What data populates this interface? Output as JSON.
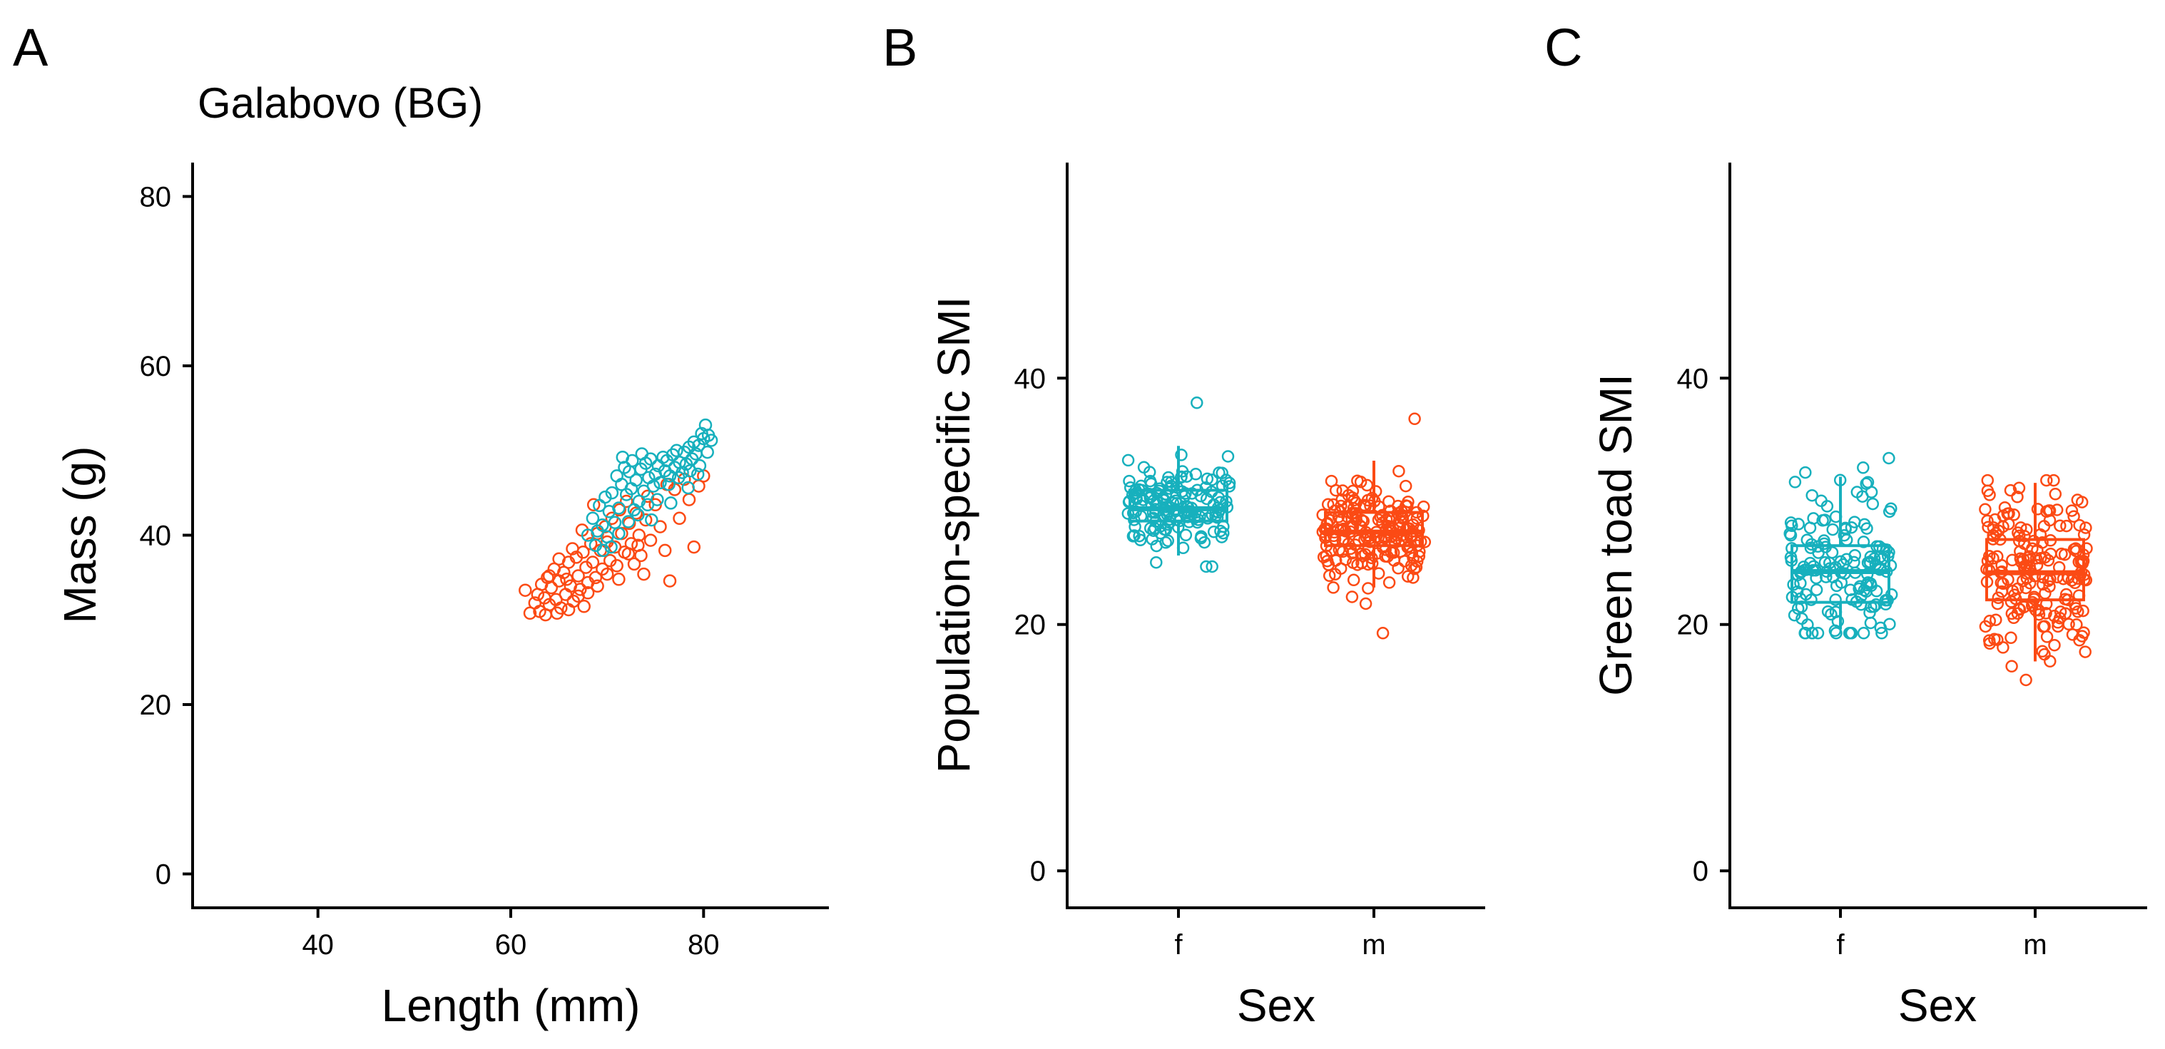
{
  "colors": {
    "f": "#17b0bd",
    "m": "#fb4a14"
  },
  "panel_labels": [
    "A",
    "B",
    "C"
  ],
  "chart_data": [
    {
      "type": "scatter",
      "panel": "A",
      "title": "Galabovo (BG)",
      "xlabel": "Length (mm)",
      "ylabel": "Mass (g)",
      "xlim": [
        27,
        93
      ],
      "ylim": [
        -4,
        84
      ],
      "xticks": [
        40,
        60,
        80
      ],
      "yticks": [
        0,
        20,
        40,
        60,
        80
      ],
      "series": [
        {
          "name": "f",
          "points": [
            [
              68.0,
              40.0
            ],
            [
              68.5,
              42.0
            ],
            [
              69.0,
              40.5
            ],
            [
              69.2,
              43.5
            ],
            [
              69.5,
              41.2
            ],
            [
              69.8,
              44.5
            ],
            [
              70.0,
              39.8
            ],
            [
              70.2,
              42.8
            ],
            [
              70.5,
              45.0
            ],
            [
              70.8,
              41.5
            ],
            [
              71.0,
              47.0
            ],
            [
              71.2,
              43.2
            ],
            [
              71.5,
              46.0
            ],
            [
              71.8,
              48.0
            ],
            [
              72.0,
              44.8
            ],
            [
              72.3,
              47.5
            ],
            [
              72.5,
              45.5
            ],
            [
              72.8,
              43.0
            ],
            [
              73.0,
              46.5
            ],
            [
              73.3,
              44.0
            ],
            [
              73.5,
              47.8
            ],
            [
              73.8,
              45.2
            ],
            [
              74.0,
              48.5
            ],
            [
              74.3,
              46.8
            ],
            [
              74.5,
              49.0
            ],
            [
              74.8,
              45.8
            ],
            [
              75.0,
              47.2
            ],
            [
              75.3,
              48.2
            ],
            [
              75.5,
              46.2
            ],
            [
              75.8,
              49.2
            ],
            [
              76.0,
              47.6
            ],
            [
              76.2,
              48.8
            ],
            [
              76.5,
              47.0
            ],
            [
              76.8,
              49.5
            ],
            [
              77.0,
              48.0
            ],
            [
              77.2,
              50.0
            ],
            [
              77.5,
              48.6
            ],
            [
              77.8,
              47.4
            ],
            [
              78.0,
              49.8
            ],
            [
              78.2,
              48.4
            ],
            [
              78.5,
              50.4
            ],
            [
              78.8,
              49.0
            ],
            [
              79.0,
              51.0
            ],
            [
              79.2,
              49.6
            ],
            [
              79.5,
              50.6
            ],
            [
              79.8,
              52.0
            ],
            [
              80.0,
              51.4
            ],
            [
              80.2,
              53.0
            ],
            [
              80.5,
              51.8
            ],
            [
              80.8,
              51.2
            ],
            [
              79.6,
              48.2
            ],
            [
              78.6,
              47.6
            ],
            [
              77.4,
              46.8
            ],
            [
              76.4,
              46.0
            ],
            [
              75.2,
              44.2
            ],
            [
              74.2,
              43.6
            ],
            [
              73.2,
              42.4
            ],
            [
              72.2,
              41.6
            ],
            [
              71.2,
              40.2
            ],
            [
              70.4,
              38.6
            ],
            [
              69.6,
              38.2
            ],
            [
              68.8,
              38.8
            ],
            [
              73.6,
              49.6
            ],
            [
              72.6,
              48.8
            ],
            [
              71.6,
              49.2
            ],
            [
              74.6,
              41.8
            ],
            [
              76.6,
              43.8
            ],
            [
              78.4,
              45.6
            ],
            [
              79.4,
              47.2
            ],
            [
              80.4,
              49.8
            ]
          ]
        },
        {
          "name": "m",
          "points": [
            [
              61.5,
              33.5
            ],
            [
              62.0,
              30.8
            ],
            [
              62.5,
              32.0
            ],
            [
              63.0,
              31.0
            ],
            [
              63.2,
              34.2
            ],
            [
              63.5,
              32.6
            ],
            [
              63.8,
              35.0
            ],
            [
              64.0,
              31.8
            ],
            [
              64.2,
              33.8
            ],
            [
              64.5,
              36.0
            ],
            [
              64.7,
              32.4
            ],
            [
              65.0,
              34.6
            ],
            [
              65.2,
              31.4
            ],
            [
              65.5,
              35.6
            ],
            [
              65.7,
              33.0
            ],
            [
              66.0,
              36.8
            ],
            [
              66.2,
              34.0
            ],
            [
              66.5,
              32.2
            ],
            [
              66.8,
              37.4
            ],
            [
              67.0,
              35.2
            ],
            [
              67.2,
              33.6
            ],
            [
              67.5,
              38.0
            ],
            [
              67.8,
              36.2
            ],
            [
              68.0,
              34.4
            ],
            [
              68.3,
              39.0
            ],
            [
              68.5,
              36.8
            ],
            [
              68.8,
              35.0
            ],
            [
              69.0,
              40.2
            ],
            [
              69.3,
              38.2
            ],
            [
              69.5,
              36.0
            ],
            [
              69.8,
              41.0
            ],
            [
              70.0,
              39.2
            ],
            [
              70.3,
              37.0
            ],
            [
              70.5,
              42.0
            ],
            [
              70.8,
              38.6
            ],
            [
              71.0,
              36.4
            ],
            [
              71.3,
              43.0
            ],
            [
              71.5,
              40.2
            ],
            [
              71.8,
              38.0
            ],
            [
              72.0,
              44.0
            ],
            [
              72.3,
              41.4
            ],
            [
              72.5,
              39.0
            ],
            [
              72.8,
              36.6
            ],
            [
              73.0,
              42.6
            ],
            [
              73.3,
              40.0
            ],
            [
              73.5,
              37.6
            ],
            [
              73.8,
              35.4
            ],
            [
              74.0,
              41.8
            ],
            [
              74.5,
              39.4
            ],
            [
              75.0,
              43.6
            ],
            [
              75.5,
              41.0
            ],
            [
              76.0,
              38.2
            ],
            [
              76.5,
              34.6
            ],
            [
              77.0,
              45.4
            ],
            [
              77.5,
              42.0
            ],
            [
              78.0,
              46.6
            ],
            [
              78.5,
              44.2
            ],
            [
              79.0,
              38.6
            ],
            [
              79.5,
              45.8
            ],
            [
              80.0,
              47.0
            ],
            [
              66.0,
              31.2
            ],
            [
              67.0,
              32.8
            ],
            [
              68.0,
              33.2
            ],
            [
              69.0,
              34.0
            ],
            [
              70.0,
              35.4
            ],
            [
              64.0,
              35.2
            ],
            [
              65.0,
              37.2
            ],
            [
              66.4,
              38.4
            ],
            [
              67.4,
              40.6
            ],
            [
              68.6,
              43.6
            ],
            [
              62.8,
              33.0
            ],
            [
              63.6,
              30.6
            ],
            [
              64.8,
              30.8
            ],
            [
              65.8,
              34.8
            ],
            [
              67.6,
              31.6
            ],
            [
              71.2,
              34.8
            ],
            [
              72.2,
              37.8
            ],
            [
              73.2,
              38.8
            ],
            [
              74.2,
              44.6
            ],
            [
              76.2,
              46.0
            ]
          ]
        }
      ]
    },
    {
      "type": "box",
      "panel": "B",
      "title": "",
      "xlabel": "Sex",
      "ylabel": "Population-specific SMI",
      "categories": [
        "f",
        "m"
      ],
      "ylim": [
        -3,
        57.5
      ],
      "yticks": [
        0,
        20,
        40
      ],
      "boxes": [
        {
          "name": "f",
          "q1": 28.4,
          "median": 29.4,
          "q3": 30.9,
          "whisker_low": 25.6,
          "whisker_high": 34.5,
          "n": 150,
          "spread": [
            -0.9,
            3.5
          ]
        },
        {
          "name": "m",
          "q1": 26.4,
          "median": 27.5,
          "q3": 29.1,
          "whisker_low": 23.0,
          "whisker_high": 33.3,
          "n": 190,
          "spread": [
            -3.7,
            3.4
          ]
        }
      ]
    },
    {
      "type": "box",
      "panel": "C",
      "title": "",
      "xlabel": "Sex",
      "ylabel": "Green toad SMI",
      "categories": [
        "f",
        "m"
      ],
      "ylim": [
        -3,
        57.5
      ],
      "yticks": [
        0,
        20,
        40
      ],
      "boxes": [
        {
          "name": "f",
          "q1": 21.8,
          "median": 24.3,
          "q3": 26.4,
          "whisker_low": 19.6,
          "whisker_high": 32.0,
          "n": 150,
          "spread": [
            -0.3,
            1.5
          ]
        },
        {
          "name": "m",
          "q1": 22.0,
          "median": 24.2,
          "q3": 26.9,
          "whisker_low": 17.0,
          "whisker_high": 31.5,
          "n": 190,
          "spread": [
            -1.5,
            0.2
          ]
        }
      ]
    }
  ]
}
